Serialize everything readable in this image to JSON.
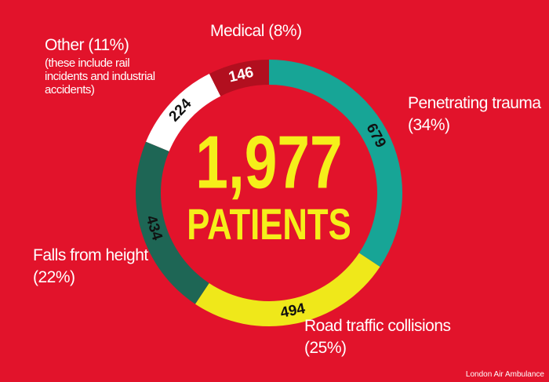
{
  "chart_data": {
    "type": "donut",
    "center_value": {
      "value": 1977,
      "label": "1,977"
    },
    "center_label": "PATIENTS",
    "categories": [
      "Penetrating trauma",
      "Road traffic collisions",
      "Falls from height",
      "Other",
      "Medical"
    ],
    "values": [
      679,
      494,
      434,
      224,
      146
    ],
    "shares": [
      34,
      25,
      22,
      11,
      8
    ],
    "share_labels": [
      "(34%)",
      "(25%)",
      "(22%)",
      "(11%)",
      "(8%)"
    ],
    "colors": [
      "#17a596",
      "#efe81a",
      "#1e6655",
      "#ffffff",
      "#b20f1f"
    ],
    "annotations": {
      "3": "(these include rail incidents and industrial accidents)"
    },
    "source": "London Air Ambulance"
  }
}
